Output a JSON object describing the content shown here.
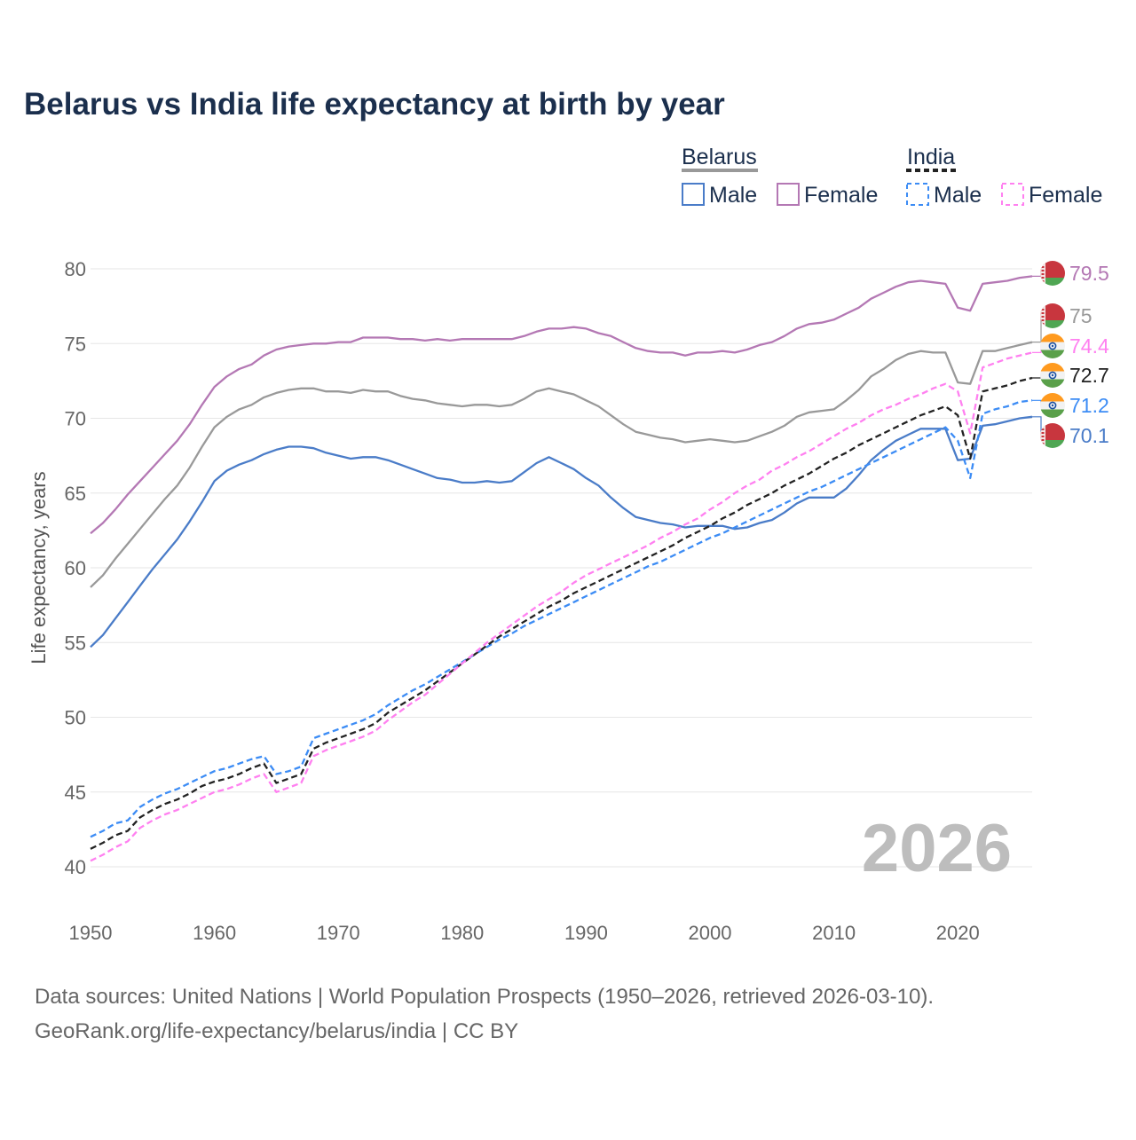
{
  "chart_data": {
    "type": "line",
    "title": "Belarus vs India life expectancy at birth by year",
    "xlabel": "",
    "ylabel": "Life expectancy, years",
    "xlim": [
      1950,
      2026
    ],
    "ylim": [
      40,
      80
    ],
    "x_ticks": [
      "1950",
      "1960",
      "1970",
      "1980",
      "1990",
      "2000",
      "2010",
      "2020"
    ],
    "y_ticks": [
      "40",
      "45",
      "50",
      "55",
      "60",
      "65",
      "70",
      "75",
      "80"
    ],
    "grid": true,
    "year_watermark": "2026",
    "legend": {
      "position": "top-right",
      "groups": [
        {
          "name": "Belarus",
          "items": [
            "Male",
            "Female"
          ]
        },
        {
          "name": "India",
          "items": [
            "Male",
            "Female"
          ]
        }
      ]
    },
    "x_start": 1950,
    "series": [
      {
        "name": "Belarus Female",
        "country": "belarus",
        "color": "#b478b4",
        "dashed": false,
        "end_label": "79.5",
        "values": [
          62.3,
          63.0,
          63.9,
          64.9,
          65.8,
          66.7,
          67.6,
          68.5,
          69.6,
          70.9,
          72.1,
          72.8,
          73.3,
          73.6,
          74.2,
          74.6,
          74.8,
          74.9,
          75.0,
          75.0,
          75.1,
          75.1,
          75.4,
          75.4,
          75.4,
          75.3,
          75.3,
          75.2,
          75.3,
          75.2,
          75.3,
          75.3,
          75.3,
          75.3,
          75.3,
          75.5,
          75.8,
          76.0,
          76.0,
          76.1,
          76.0,
          75.7,
          75.5,
          75.1,
          74.7,
          74.5,
          74.4,
          74.4,
          74.2,
          74.4,
          74.4,
          74.5,
          74.4,
          74.6,
          74.9,
          75.1,
          75.5,
          76.0,
          76.3,
          76.4,
          76.6,
          77.0,
          77.4,
          78.0,
          78.4,
          78.8,
          79.1,
          79.2,
          79.1,
          79.0,
          77.4,
          77.2,
          79.0,
          79.1,
          79.2,
          79.4,
          79.5
        ]
      },
      {
        "name": "Belarus",
        "country": "belarus",
        "color": "#999999",
        "dashed": false,
        "end_label": "75",
        "values": [
          58.7,
          59.5,
          60.6,
          61.6,
          62.6,
          63.6,
          64.6,
          65.5,
          66.7,
          68.1,
          69.4,
          70.1,
          70.6,
          70.9,
          71.4,
          71.7,
          71.9,
          72.0,
          72.0,
          71.8,
          71.8,
          71.7,
          71.9,
          71.8,
          71.8,
          71.5,
          71.3,
          71.2,
          71.0,
          70.9,
          70.8,
          70.9,
          70.9,
          70.8,
          70.9,
          71.3,
          71.8,
          72.0,
          71.8,
          71.6,
          71.2,
          70.8,
          70.2,
          69.6,
          69.1,
          68.9,
          68.7,
          68.6,
          68.4,
          68.5,
          68.6,
          68.5,
          68.4,
          68.5,
          68.8,
          69.1,
          69.5,
          70.1,
          70.4,
          70.5,
          70.6,
          71.2,
          71.9,
          72.8,
          73.3,
          73.9,
          74.3,
          74.5,
          74.4,
          74.4,
          72.4,
          72.3,
          74.5,
          74.5,
          74.7,
          74.9,
          75.1
        ]
      },
      {
        "name": "India Female",
        "country": "india",
        "color": "#ff80f0",
        "dashed": true,
        "end_label": "74.4",
        "values": [
          40.4,
          40.8,
          41.3,
          41.7,
          42.6,
          43.1,
          43.5,
          43.8,
          44.2,
          44.6,
          45.0,
          45.2,
          45.5,
          45.9,
          46.2,
          45.0,
          45.3,
          45.6,
          47.4,
          47.8,
          48.1,
          48.4,
          48.7,
          49.1,
          49.8,
          50.4,
          51.0,
          51.5,
          52.2,
          52.9,
          53.6,
          54.3,
          55.0,
          55.6,
          56.2,
          56.8,
          57.4,
          57.9,
          58.4,
          59.0,
          59.5,
          59.9,
          60.3,
          60.7,
          61.1,
          61.5,
          62.0,
          62.4,
          62.9,
          63.3,
          63.9,
          64.4,
          65.0,
          65.5,
          65.9,
          66.5,
          66.9,
          67.4,
          67.8,
          68.3,
          68.8,
          69.3,
          69.7,
          70.2,
          70.6,
          70.9,
          71.3,
          71.6,
          72.0,
          72.3,
          71.8,
          69.0,
          73.4,
          73.7,
          74.0,
          74.2,
          74.4
        ]
      },
      {
        "name": "India",
        "country": "india",
        "color": "#222222",
        "dashed": true,
        "end_label": "72.7",
        "values": [
          41.2,
          41.6,
          42.1,
          42.4,
          43.3,
          43.8,
          44.2,
          44.5,
          44.9,
          45.4,
          45.7,
          45.9,
          46.2,
          46.6,
          46.9,
          45.6,
          45.9,
          46.2,
          47.9,
          48.3,
          48.6,
          48.9,
          49.2,
          49.6,
          50.3,
          50.8,
          51.3,
          51.8,
          52.4,
          53.0,
          53.6,
          54.2,
          54.8,
          55.4,
          55.9,
          56.4,
          56.9,
          57.4,
          57.8,
          58.3,
          58.7,
          59.1,
          59.5,
          59.9,
          60.3,
          60.7,
          61.1,
          61.5,
          62.0,
          62.4,
          62.8,
          63.3,
          63.7,
          64.2,
          64.6,
          65.0,
          65.5,
          65.9,
          66.3,
          66.8,
          67.3,
          67.7,
          68.2,
          68.6,
          69.0,
          69.4,
          69.8,
          70.2,
          70.5,
          70.8,
          70.2,
          67.3,
          71.8,
          72.0,
          72.2,
          72.5,
          72.7
        ]
      },
      {
        "name": "India Male",
        "country": "india",
        "color": "#3c8cf5",
        "dashed": true,
        "end_label": "71.2",
        "values": [
          42.0,
          42.4,
          42.9,
          43.1,
          44.0,
          44.5,
          44.9,
          45.2,
          45.6,
          46.0,
          46.4,
          46.6,
          46.9,
          47.2,
          47.4,
          46.2,
          46.4,
          46.7,
          48.6,
          48.9,
          49.2,
          49.5,
          49.8,
          50.2,
          50.8,
          51.3,
          51.8,
          52.2,
          52.7,
          53.2,
          53.7,
          54.2,
          54.7,
          55.2,
          55.6,
          56.1,
          56.5,
          56.9,
          57.3,
          57.7,
          58.1,
          58.5,
          58.9,
          59.3,
          59.7,
          60.1,
          60.4,
          60.8,
          61.2,
          61.6,
          62.0,
          62.3,
          62.7,
          63.1,
          63.5,
          63.9,
          64.3,
          64.7,
          65.1,
          65.4,
          65.8,
          66.2,
          66.6,
          67.0,
          67.4,
          67.8,
          68.2,
          68.6,
          69.0,
          69.4,
          68.5,
          66.0,
          70.3,
          70.6,
          70.8,
          71.1,
          71.2
        ]
      },
      {
        "name": "Belarus Male",
        "country": "belarus",
        "color": "#4a7cc8",
        "dashed": false,
        "end_label": "70.1",
        "values": [
          54.7,
          55.5,
          56.6,
          57.7,
          58.8,
          59.9,
          60.9,
          61.9,
          63.1,
          64.4,
          65.8,
          66.5,
          66.9,
          67.2,
          67.6,
          67.9,
          68.1,
          68.1,
          68.0,
          67.7,
          67.5,
          67.3,
          67.4,
          67.4,
          67.2,
          66.9,
          66.6,
          66.3,
          66.0,
          65.9,
          65.7,
          65.7,
          65.8,
          65.7,
          65.8,
          66.4,
          67.0,
          67.4,
          67.0,
          66.6,
          66.0,
          65.5,
          64.7,
          64.0,
          63.4,
          63.2,
          63.0,
          62.9,
          62.7,
          62.8,
          62.8,
          62.8,
          62.6,
          62.7,
          63.0,
          63.2,
          63.7,
          64.3,
          64.7,
          64.7,
          64.7,
          65.3,
          66.2,
          67.2,
          67.9,
          68.5,
          68.9,
          69.3,
          69.3,
          69.3,
          67.2,
          67.3,
          69.5,
          69.6,
          69.8,
          70.0,
          70.1
        ]
      }
    ]
  },
  "legend_labels": {
    "belarus": "Belarus",
    "india": "India",
    "belarus_male": "Male",
    "belarus_female": "Female",
    "india_male": "Male",
    "india_female": "Female"
  },
  "footer": {
    "line1": "Data sources: United Nations | World Population Prospects (1950–2026, retrieved 2026-03-10).",
    "line2": "GeoRank.org/life-expectancy/belarus/india | CC BY"
  }
}
